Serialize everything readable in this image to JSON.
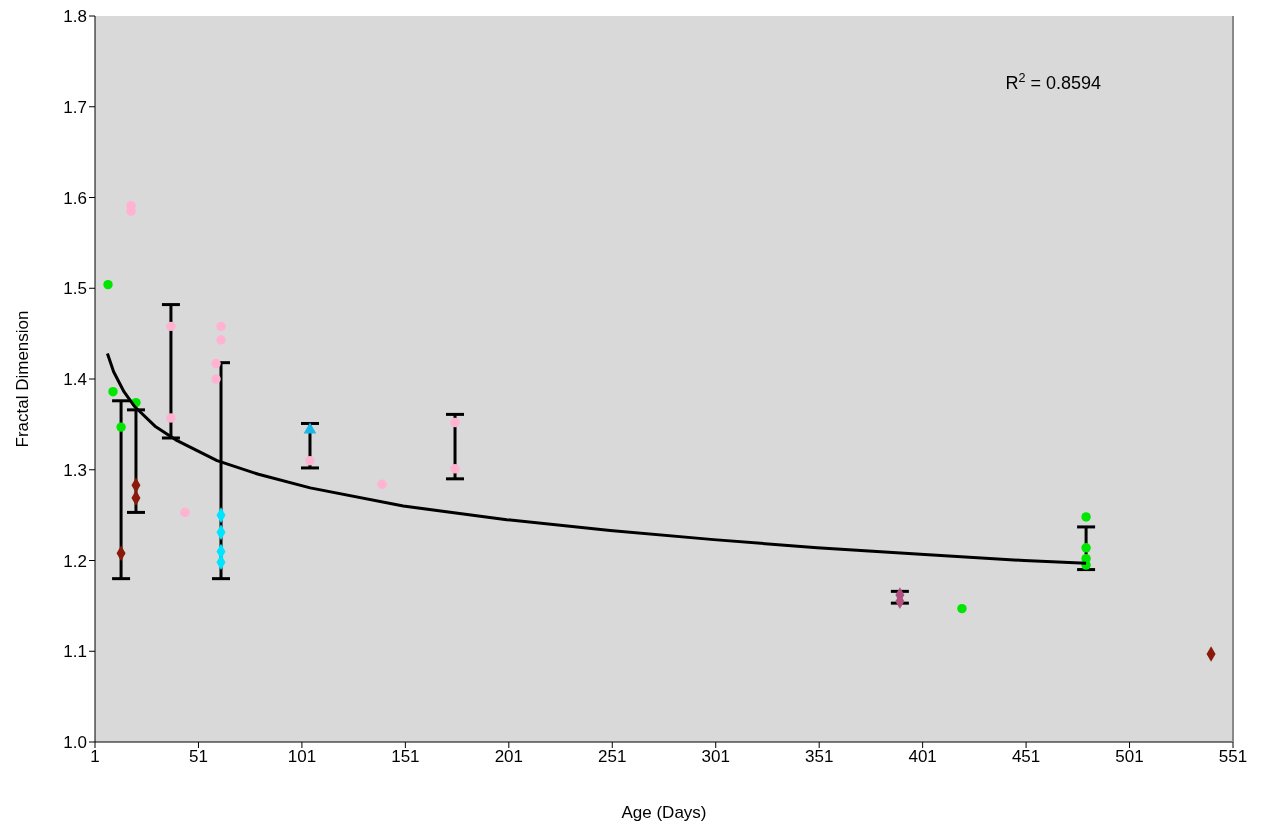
{
  "chart_data": {
    "type": "scatter",
    "xlabel": "Age (Days)",
    "ylabel": "Fractal Dimension",
    "xlim": [
      1,
      551
    ],
    "xticks": [
      1,
      51,
      101,
      151,
      201,
      251,
      301,
      351,
      401,
      451,
      501,
      551
    ],
    "ylim": [
      1,
      1.8
    ],
    "yticks": [
      {
        "value": 1,
        "label": "1.0"
      },
      1.1,
      1.2,
      1.3,
      1.4,
      1.5,
      1.6,
      1.7,
      1.8
    ],
    "grid": false,
    "annotations": [
      "R$^{2}$ = 0.8594"
    ],
    "series": [
      {
        "marker": "circle",
        "color": "#00e600",
        "x": [
          7.3,
          9.7,
          13.6,
          20.8,
          420,
          480,
          480,
          480,
          480
        ],
        "values": [
          1.504,
          1.386,
          1.347,
          1.374,
          1.147,
          1.248,
          1.214,
          1.202,
          1.195
        ],
        "errors": [
          null,
          null,
          [
            1.18,
            1.376
          ],
          null,
          null,
          null,
          [
            1.19,
            1.237
          ],
          null,
          null
        ]
      },
      {
        "marker": "diamond",
        "color": "#8b1a0a",
        "x": [
          13.6,
          20.8,
          20.8,
          540.4
        ],
        "values": [
          1.208,
          1.283,
          1.269,
          1.097
        ],
        "errors": [
          null,
          null,
          [
            1.253,
            1.366
          ],
          null
        ]
      },
      {
        "marker": "circle",
        "color": "#ffb3d1",
        "x": [
          18.4,
          18.4,
          37.7,
          37.7,
          44.5,
          61.9,
          61.9,
          59.5,
          59.5,
          104.9,
          139.7,
          175,
          175
        ],
        "values": [
          1.591,
          1.585,
          1.458,
          1.357,
          1.253,
          1.458,
          1.443,
          1.417,
          1.4,
          1.31,
          1.284,
          1.352,
          1.301
        ],
        "errors": [
          null,
          null,
          [
            1.335,
            1.482
          ],
          null,
          null,
          null,
          null,
          null,
          null,
          [
            1.302,
            1.351
          ],
          null,
          [
            1.29,
            1.361
          ],
          null
        ]
      },
      {
        "marker": "diamond",
        "color": "#00e5ff",
        "x": [
          61.9,
          61.9,
          61.9,
          61.9
        ],
        "values": [
          1.25,
          1.231,
          1.21,
          1.198
        ],
        "errors": [
          null,
          [
            1.18,
            1.418
          ],
          null,
          null
        ]
      },
      {
        "marker": "triangle",
        "color": "#1ab8e8",
        "x": [
          104.9
        ],
        "values": [
          1.344
        ]
      },
      {
        "marker": "diamond",
        "color": "#b0507e",
        "x": [
          390,
          390
        ],
        "values": [
          1.162,
          1.155
        ],
        "errors": [
          null,
          [
            1.153,
            1.166
          ]
        ]
      },
      {
        "type": "line",
        "marker": "none",
        "color": "#000000",
        "x": [
          7,
          10,
          15,
          20,
          30,
          40,
          60,
          80,
          105,
          150,
          200,
          250,
          300,
          350,
          400,
          450,
          480
        ],
        "values": [
          1.428,
          1.408,
          1.386,
          1.37,
          1.348,
          1.333,
          1.31,
          1.295,
          1.28,
          1.26,
          1.245,
          1.233,
          1.223,
          1.214,
          1.207,
          1.2,
          1.197
        ]
      }
    ]
  }
}
